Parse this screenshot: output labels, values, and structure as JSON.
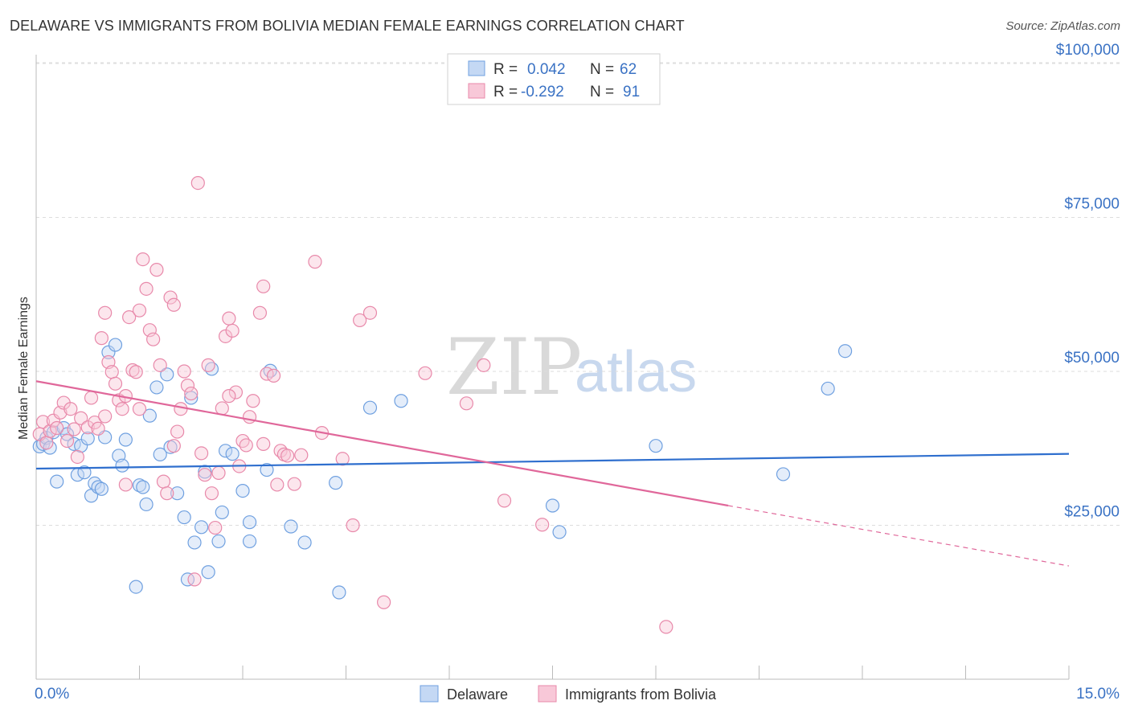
{
  "title": "DELAWARE VS IMMIGRANTS FROM BOLIVIA MEDIAN FEMALE EARNINGS CORRELATION CHART",
  "source": "Source: ZipAtlas.com",
  "watermark": {
    "zip": "ZIP",
    "atlas": "atlas"
  },
  "stats": [
    {
      "r_label": "R =",
      "r_value": "0.042",
      "n_label": "N =",
      "n_value": "62",
      "color": "#6fa0e0",
      "fill": "#c4d8f4"
    },
    {
      "r_label": "R =",
      "r_value": "-0.292",
      "n_label": "N =",
      "n_value": "91",
      "color": "#e889aa",
      "fill": "#f8c8d8"
    }
  ],
  "x_axis": {
    "min_label": "0.0%",
    "max_label": "15.0%"
  },
  "y_axis": {
    "label": "Median Female Earnings",
    "tick_labels": [
      "$100,000",
      "$75,000",
      "$50,000",
      "$25,000"
    ]
  },
  "legend": [
    "Delaware",
    "Immigrants from Bolivia"
  ],
  "colors": {
    "delaware": "#6fa0e0",
    "delaware_fill": "#c4d8f4",
    "delaware_line": "#2f6fce",
    "bolivia": "#e889aa",
    "bolivia_fill": "#f8c8d8",
    "bolivia_line": "#e0679a",
    "tick_text": "#3a72c4",
    "grid": "#dddddd"
  },
  "chart_data": {
    "type": "scatter",
    "xlabel": "",
    "ylabel": "Median Female Earnings",
    "xlim": [
      0,
      15
    ],
    "ylim": [
      0,
      105000
    ],
    "y_ticks": [
      25000,
      50000,
      75000,
      100000
    ],
    "grid": true,
    "legend_position": "bottom",
    "series": [
      {
        "name": "Delaware",
        "trend": {
          "x": [
            0,
            15
          ],
          "y": [
            34200,
            36600
          ]
        },
        "points": [
          [
            0.05,
            37800
          ],
          [
            0.1,
            38200
          ],
          [
            0.15,
            39200
          ],
          [
            0.2,
            37600
          ],
          [
            0.25,
            40100
          ],
          [
            0.3,
            32100
          ],
          [
            0.4,
            40800
          ],
          [
            0.45,
            39800
          ],
          [
            0.55,
            38200
          ],
          [
            0.6,
            33200
          ],
          [
            0.65,
            37900
          ],
          [
            0.75,
            39100
          ],
          [
            0.7,
            33600
          ],
          [
            0.8,
            29800
          ],
          [
            0.85,
            31800
          ],
          [
            0.9,
            31200
          ],
          [
            0.95,
            30900
          ],
          [
            1.0,
            39300
          ],
          [
            1.05,
            53100
          ],
          [
            1.15,
            54300
          ],
          [
            1.2,
            36300
          ],
          [
            1.25,
            34700
          ],
          [
            1.3,
            38900
          ],
          [
            1.5,
            31500
          ],
          [
            1.55,
            31200
          ],
          [
            1.6,
            28400
          ],
          [
            1.65,
            42800
          ],
          [
            1.75,
            47400
          ],
          [
            1.8,
            36500
          ],
          [
            1.9,
            49500
          ],
          [
            1.95,
            37700
          ],
          [
            2.05,
            30200
          ],
          [
            2.15,
            26300
          ],
          [
            2.2,
            16200
          ],
          [
            2.25,
            45700
          ],
          [
            2.3,
            22200
          ],
          [
            2.4,
            24700
          ],
          [
            2.45,
            33700
          ],
          [
            2.5,
            17400
          ],
          [
            2.55,
            50400
          ],
          [
            2.65,
            22400
          ],
          [
            2.7,
            27100
          ],
          [
            2.75,
            37100
          ],
          [
            2.85,
            36600
          ],
          [
            3.0,
            30600
          ],
          [
            3.1,
            22400
          ],
          [
            3.1,
            25500
          ],
          [
            3.35,
            34000
          ],
          [
            3.4,
            50100
          ],
          [
            3.7,
            24800
          ],
          [
            3.9,
            22200
          ],
          [
            4.35,
            31900
          ],
          [
            4.4,
            14100
          ],
          [
            4.85,
            44100
          ],
          [
            5.3,
            45200
          ],
          [
            7.5,
            28200
          ],
          [
            7.6,
            23900
          ],
          [
            9.0,
            37900
          ],
          [
            10.85,
            33300
          ],
          [
            11.5,
            47200
          ],
          [
            11.75,
            53300
          ],
          [
            1.45,
            15000
          ]
        ]
      },
      {
        "name": "Immigrants from Bolivia",
        "trend": {
          "x": [
            0,
            10.05
          ],
          "y": [
            48400,
            28200
          ]
        },
        "trend_dashed": {
          "x": [
            10.05,
            15
          ],
          "y": [
            28200,
            18400
          ]
        },
        "points": [
          [
            0.05,
            39800
          ],
          [
            0.1,
            41800
          ],
          [
            0.15,
            38400
          ],
          [
            0.2,
            40300
          ],
          [
            0.25,
            42000
          ],
          [
            0.35,
            43300
          ],
          [
            0.4,
            44900
          ],
          [
            0.45,
            38700
          ],
          [
            0.55,
            40600
          ],
          [
            0.6,
            36100
          ],
          [
            0.65,
            42400
          ],
          [
            0.75,
            40900
          ],
          [
            0.8,
            45700
          ],
          [
            0.85,
            41700
          ],
          [
            0.9,
            40700
          ],
          [
            0.95,
            55400
          ],
          [
            1.0,
            59500
          ],
          [
            1.05,
            51500
          ],
          [
            1.1,
            49900
          ],
          [
            1.15,
            48000
          ],
          [
            1.2,
            45300
          ],
          [
            1.25,
            43900
          ],
          [
            1.3,
            46000
          ],
          [
            1.35,
            58800
          ],
          [
            1.4,
            50200
          ],
          [
            1.45,
            49900
          ],
          [
            1.5,
            43900
          ],
          [
            1.55,
            68200
          ],
          [
            1.6,
            63400
          ],
          [
            1.65,
            56700
          ],
          [
            1.7,
            55200
          ],
          [
            1.75,
            66500
          ],
          [
            1.8,
            51000
          ],
          [
            1.85,
            32100
          ],
          [
            1.9,
            30200
          ],
          [
            1.95,
            62000
          ],
          [
            2.0,
            37900
          ],
          [
            2.05,
            40200
          ],
          [
            2.1,
            43900
          ],
          [
            2.15,
            50000
          ],
          [
            2.2,
            47700
          ],
          [
            2.25,
            46400
          ],
          [
            2.3,
            16200
          ],
          [
            2.35,
            80600
          ],
          [
            2.4,
            36700
          ],
          [
            2.45,
            33200
          ],
          [
            2.5,
            51000
          ],
          [
            2.55,
            30200
          ],
          [
            2.6,
            24600
          ],
          [
            2.65,
            33500
          ],
          [
            2.7,
            44000
          ],
          [
            2.75,
            55700
          ],
          [
            2.8,
            58600
          ],
          [
            2.85,
            56600
          ],
          [
            2.9,
            46600
          ],
          [
            2.95,
            34600
          ],
          [
            3.0,
            38700
          ],
          [
            3.05,
            38000
          ],
          [
            3.1,
            42600
          ],
          [
            3.15,
            45200
          ],
          [
            3.25,
            59500
          ],
          [
            3.3,
            63800
          ],
          [
            3.35,
            49600
          ],
          [
            3.45,
            49300
          ],
          [
            3.5,
            31600
          ],
          [
            3.55,
            37100
          ],
          [
            3.6,
            36500
          ],
          [
            3.65,
            36300
          ],
          [
            3.75,
            31700
          ],
          [
            3.85,
            36400
          ],
          [
            4.05,
            67800
          ],
          [
            4.15,
            40000
          ],
          [
            4.45,
            35800
          ],
          [
            4.6,
            25000
          ],
          [
            4.7,
            58300
          ],
          [
            4.85,
            59500
          ],
          [
            5.05,
            12500
          ],
          [
            5.65,
            49700
          ],
          [
            6.25,
            44800
          ],
          [
            6.5,
            51000
          ],
          [
            6.8,
            29000
          ],
          [
            7.35,
            25100
          ],
          [
            9.15,
            8500
          ],
          [
            1.3,
            31600
          ],
          [
            2.0,
            60800
          ],
          [
            0.5,
            43900
          ],
          [
            1.0,
            42700
          ],
          [
            1.5,
            59900
          ],
          [
            2.8,
            46000
          ],
          [
            3.3,
            38200
          ],
          [
            0.3,
            40800
          ]
        ]
      }
    ]
  }
}
